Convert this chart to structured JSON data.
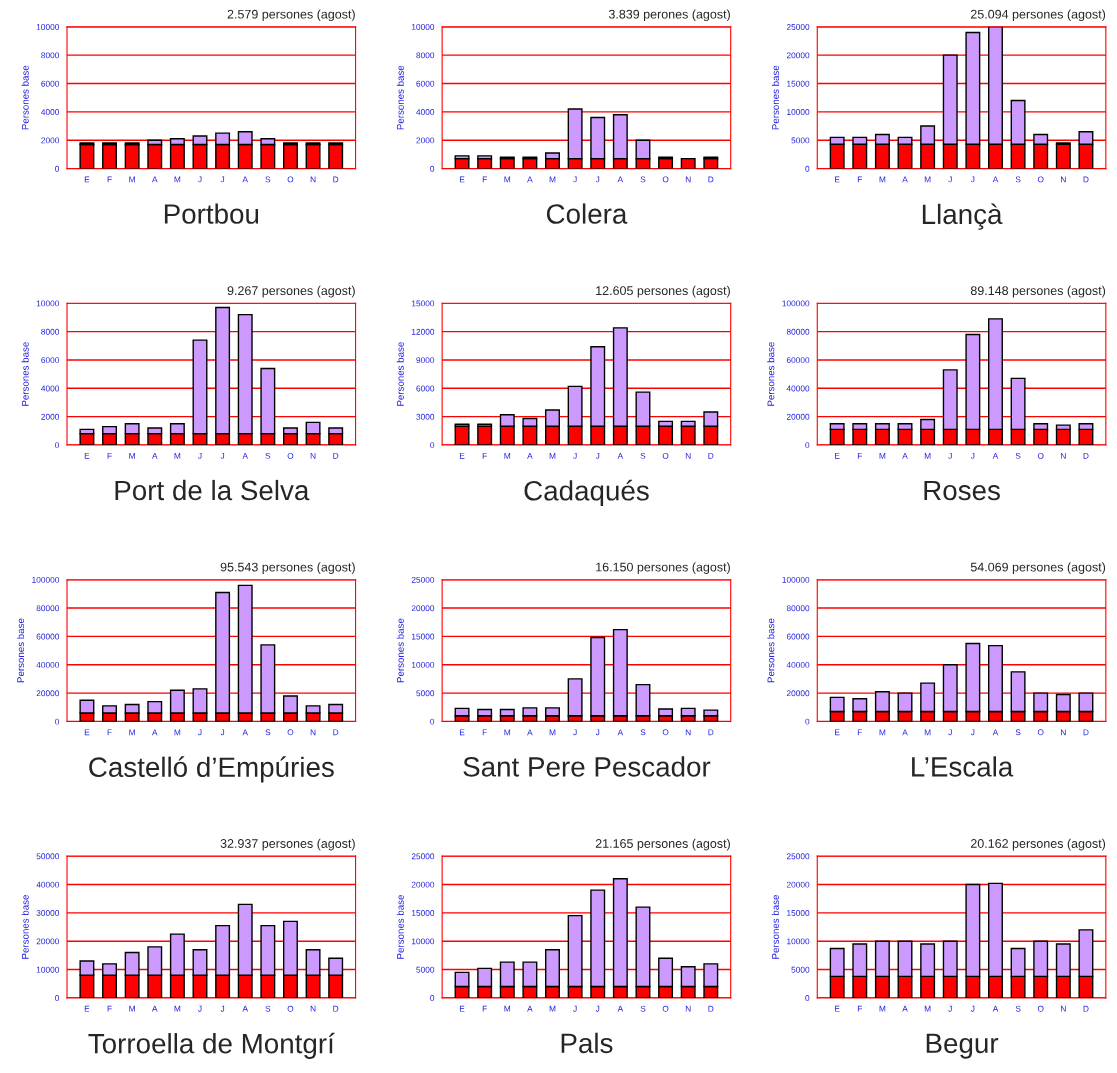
{
  "chart_data": [
    {
      "type": "bar",
      "stacked": true,
      "title": "2.579 persones (agost)",
      "xlabel": "Portbou",
      "ylabel": "Persones base",
      "categories": [
        "E",
        "F",
        "M",
        "A",
        "M",
        "J",
        "J",
        "A",
        "S",
        "O",
        "N",
        "D"
      ],
      "ylim": [
        0,
        10000
      ],
      "yticks": [
        0,
        2000,
        4000,
        6000,
        8000,
        10000
      ],
      "grid": "y",
      "series": [
        {
          "color": "#ff0000",
          "values": [
            1700,
            1700,
            1700,
            1700,
            1700,
            1700,
            1700,
            1700,
            1700,
            1700,
            1700,
            1700
          ]
        },
        {
          "color": "#cc99ff",
          "values": [
            100,
            100,
            100,
            300,
            400,
            600,
            800,
            900,
            400,
            100,
            100,
            100
          ]
        }
      ]
    },
    {
      "type": "bar",
      "stacked": true,
      "title": "3.839 perones (agost)",
      "xlabel": "Colera",
      "ylabel": "Persones base",
      "categories": [
        "E",
        "F",
        "M",
        "A",
        "M",
        "J",
        "J",
        "A",
        "S",
        "O",
        "N",
        "D"
      ],
      "ylim": [
        0,
        10000
      ],
      "yticks": [
        0,
        2000,
        4000,
        6000,
        8000,
        10000
      ],
      "grid": "y",
      "series": [
        {
          "color": "#ff0000",
          "values": [
            700,
            700,
            700,
            700,
            700,
            700,
            700,
            700,
            700,
            700,
            700,
            700
          ]
        },
        {
          "color": "#cc99ff",
          "values": [
            200,
            200,
            100,
            100,
            400,
            3500,
            2900,
            3100,
            1300,
            100,
            null,
            100
          ]
        }
      ]
    },
    {
      "type": "bar",
      "stacked": true,
      "title": "25.094 persones (agost)",
      "xlabel": "Llançà",
      "ylabel": "Persones base",
      "categories": [
        "E",
        "F",
        "M",
        "A",
        "M",
        "J",
        "J",
        "A",
        "S",
        "O",
        "N",
        "D"
      ],
      "ylim": [
        0,
        25000
      ],
      "yticks": [
        0,
        5000,
        10000,
        15000,
        20000,
        25000
      ],
      "grid": "y",
      "series": [
        {
          "color": "#ff0000",
          "values": [
            4300,
            4300,
            4300,
            4300,
            4300,
            4300,
            4300,
            4300,
            4300,
            4300,
            4300,
            4300
          ]
        },
        {
          "color": "#cc99ff",
          "values": [
            1200,
            1200,
            1700,
            1200,
            3200,
            15700,
            19700,
            20700,
            7700,
            1700,
            200,
            2200
          ]
        }
      ]
    },
    {
      "type": "bar",
      "stacked": true,
      "title": "9.267 persones (agost)",
      "xlabel": "Port de la Selva",
      "ylabel": "Persones base",
      "categories": [
        "E",
        "F",
        "M",
        "A",
        "M",
        "J",
        "J",
        "A",
        "S",
        "O",
        "N",
        "D"
      ],
      "ylim": [
        0,
        10000
      ],
      "yticks": [
        0,
        2000,
        4000,
        6000,
        8000,
        10000
      ],
      "grid": "y",
      "series": [
        {
          "color": "#ff0000",
          "values": [
            800,
            800,
            800,
            800,
            800,
            800,
            800,
            800,
            800,
            800,
            800,
            800
          ]
        },
        {
          "color": "#cc99ff",
          "values": [
            300,
            500,
            700,
            400,
            700,
            6600,
            8900,
            8400,
            4600,
            400,
            800,
            400
          ]
        }
      ]
    },
    {
      "type": "bar",
      "stacked": true,
      "title": "12.605 persones (agost)",
      "xlabel": "Cadaqués",
      "ylabel": "Persones base",
      "categories": [
        "E",
        "F",
        "M",
        "A",
        "M",
        "J",
        "J",
        "A",
        "S",
        "O",
        "N",
        "D"
      ],
      "ylim": [
        0,
        15000
      ],
      "yticks": [
        0,
        3000,
        6000,
        9000,
        12000,
        15000
      ],
      "grid": "y",
      "series": [
        {
          "color": "#ff0000",
          "values": [
            2000,
            2000,
            2000,
            2000,
            2000,
            2000,
            2000,
            2000,
            2000,
            2000,
            2000,
            2000
          ]
        },
        {
          "color": "#cc99ff",
          "values": [
            200,
            200,
            1200,
            800,
            1700,
            4200,
            8400,
            10400,
            3600,
            500,
            500,
            1500
          ]
        }
      ]
    },
    {
      "type": "bar",
      "stacked": true,
      "title": "89.148 persones (agost)",
      "xlabel": "Roses",
      "ylabel": "Persones base",
      "categories": [
        "E",
        "F",
        "M",
        "A",
        "M",
        "J",
        "J",
        "A",
        "S",
        "O",
        "N",
        "D"
      ],
      "ylim": [
        0,
        100000
      ],
      "yticks": [
        0,
        20000,
        40000,
        60000,
        80000,
        100000
      ],
      "grid": "y",
      "series": [
        {
          "color": "#ff0000",
          "values": [
            11000,
            11000,
            11000,
            11000,
            11000,
            11000,
            11000,
            11000,
            11000,
            11000,
            11000,
            11000
          ]
        },
        {
          "color": "#cc99ff",
          "values": [
            4000,
            4000,
            4000,
            4000,
            7000,
            42000,
            67000,
            78000,
            36000,
            4000,
            3000,
            4000
          ]
        }
      ]
    },
    {
      "type": "bar",
      "stacked": true,
      "title": "95.543 persones (agost)",
      "xlabel": "Castelló d’Empúries",
      "ylabel": "Persones base",
      "categories": [
        "E",
        "F",
        "M",
        "A",
        "M",
        "J",
        "J",
        "A",
        "S",
        "O",
        "N",
        "D"
      ],
      "ylim": [
        0,
        100000
      ],
      "yticks": [
        0,
        20000,
        40000,
        60000,
        80000,
        100000
      ],
      "grid": "y",
      "series": [
        {
          "color": "#ff0000",
          "values": [
            6000,
            6000,
            6000,
            6000,
            6000,
            6000,
            6000,
            6000,
            6000,
            6000,
            6000,
            6000
          ]
        },
        {
          "color": "#cc99ff",
          "values": [
            9000,
            5000,
            6000,
            8000,
            16000,
            17000,
            85000,
            90000,
            48000,
            12000,
            5000,
            6000
          ]
        }
      ]
    },
    {
      "type": "bar",
      "stacked": true,
      "title": "16.150 persones (agost)",
      "xlabel": "Sant Pere Pescador",
      "ylabel": "Persones base",
      "categories": [
        "E",
        "F",
        "M",
        "A",
        "M",
        "J",
        "J",
        "A",
        "S",
        "O",
        "N",
        "D"
      ],
      "ylim": [
        0,
        25000
      ],
      "yticks": [
        0,
        5000,
        10000,
        15000,
        20000,
        25000
      ],
      "grid": "y",
      "series": [
        {
          "color": "#ff0000",
          "values": [
            1000,
            1000,
            1000,
            1000,
            1000,
            1000,
            1000,
            1000,
            1000,
            1000,
            1000,
            1000
          ]
        },
        {
          "color": "#cc99ff",
          "values": [
            1300,
            1100,
            1100,
            1400,
            1400,
            6500,
            13800,
            15200,
            5500,
            1200,
            1300,
            1000
          ]
        }
      ]
    },
    {
      "type": "bar",
      "stacked": true,
      "title": "54.069 persones (agost)",
      "xlabel": "L’Escala",
      "ylabel": "Persones base",
      "categories": [
        "E",
        "F",
        "M",
        "A",
        "M",
        "J",
        "J",
        "A",
        "S",
        "O",
        "N",
        "D"
      ],
      "ylim": [
        0,
        100000
      ],
      "yticks": [
        0,
        20000,
        40000,
        60000,
        80000,
        100000
      ],
      "grid": "y",
      "series": [
        {
          "color": "#ff0000",
          "values": [
            7000,
            7000,
            7000,
            7000,
            7000,
            7000,
            7000,
            7000,
            7000,
            7000,
            7000,
            7000
          ]
        },
        {
          "color": "#cc99ff",
          "values": [
            10000,
            9000,
            14000,
            13000,
            20000,
            33000,
            48000,
            46500,
            28000,
            13000,
            12000,
            13000
          ]
        }
      ]
    },
    {
      "type": "bar",
      "stacked": true,
      "title": "32.937 persones (agost)",
      "xlabel": "Torroella de Montgrí",
      "ylabel": "Persones base",
      "categories": [
        "E",
        "F",
        "M",
        "A",
        "M",
        "J",
        "J",
        "A",
        "S",
        "O",
        "N",
        "D"
      ],
      "ylim": [
        0,
        50000
      ],
      "yticks": [
        0,
        10000,
        20000,
        30000,
        40000,
        50000
      ],
      "grid": "y",
      "series": [
        {
          "color": "#ff0000",
          "values": [
            8000,
            8000,
            8000,
            8000,
            8000,
            8000,
            8000,
            8000,
            8000,
            8000,
            8000,
            8000
          ]
        },
        {
          "color": "#cc99ff",
          "values": [
            5000,
            4000,
            8000,
            10000,
            14500,
            9000,
            17500,
            25000,
            17500,
            19000,
            9000,
            6000
          ]
        }
      ]
    },
    {
      "type": "bar",
      "stacked": true,
      "title": "21.165 persones (agost)",
      "xlabel": "Pals",
      "ylabel": "Persones base",
      "categories": [
        "E",
        "F",
        "M",
        "A",
        "M",
        "J",
        "J",
        "A",
        "S",
        "O",
        "N",
        "D"
      ],
      "ylim": [
        0,
        25000
      ],
      "yticks": [
        0,
        5000,
        10000,
        15000,
        20000,
        25000
      ],
      "grid": "y",
      "series": [
        {
          "color": "#ff0000",
          "values": [
            2000,
            2000,
            2000,
            2000,
            2000,
            2000,
            2000,
            2000,
            2000,
            2000,
            2000,
            2000
          ]
        },
        {
          "color": "#cc99ff",
          "values": [
            2500,
            3200,
            4300,
            4300,
            6500,
            12500,
            17000,
            19000,
            14000,
            5000,
            3500,
            4000
          ]
        }
      ]
    },
    {
      "type": "bar",
      "stacked": true,
      "title": "20.162 persones (agost)",
      "xlabel": "Begur",
      "ylabel": "Persones base",
      "categories": [
        "E",
        "F",
        "M",
        "A",
        "M",
        "J",
        "J",
        "A",
        "S",
        "O",
        "N",
        "D"
      ],
      "ylim": [
        0,
        25000
      ],
      "yticks": [
        0,
        5000,
        10000,
        15000,
        20000,
        25000
      ],
      "grid": "y",
      "series": [
        {
          "color": "#ff0000",
          "values": [
            3800,
            3800,
            3800,
            3800,
            3800,
            3800,
            3800,
            3800,
            3800,
            3800,
            3800,
            3800
          ]
        },
        {
          "color": "#cc99ff",
          "values": [
            4900,
            5700,
            6200,
            6200,
            5700,
            6200,
            16200,
            16400,
            4900,
            6200,
            5700,
            8200
          ]
        }
      ]
    }
  ]
}
